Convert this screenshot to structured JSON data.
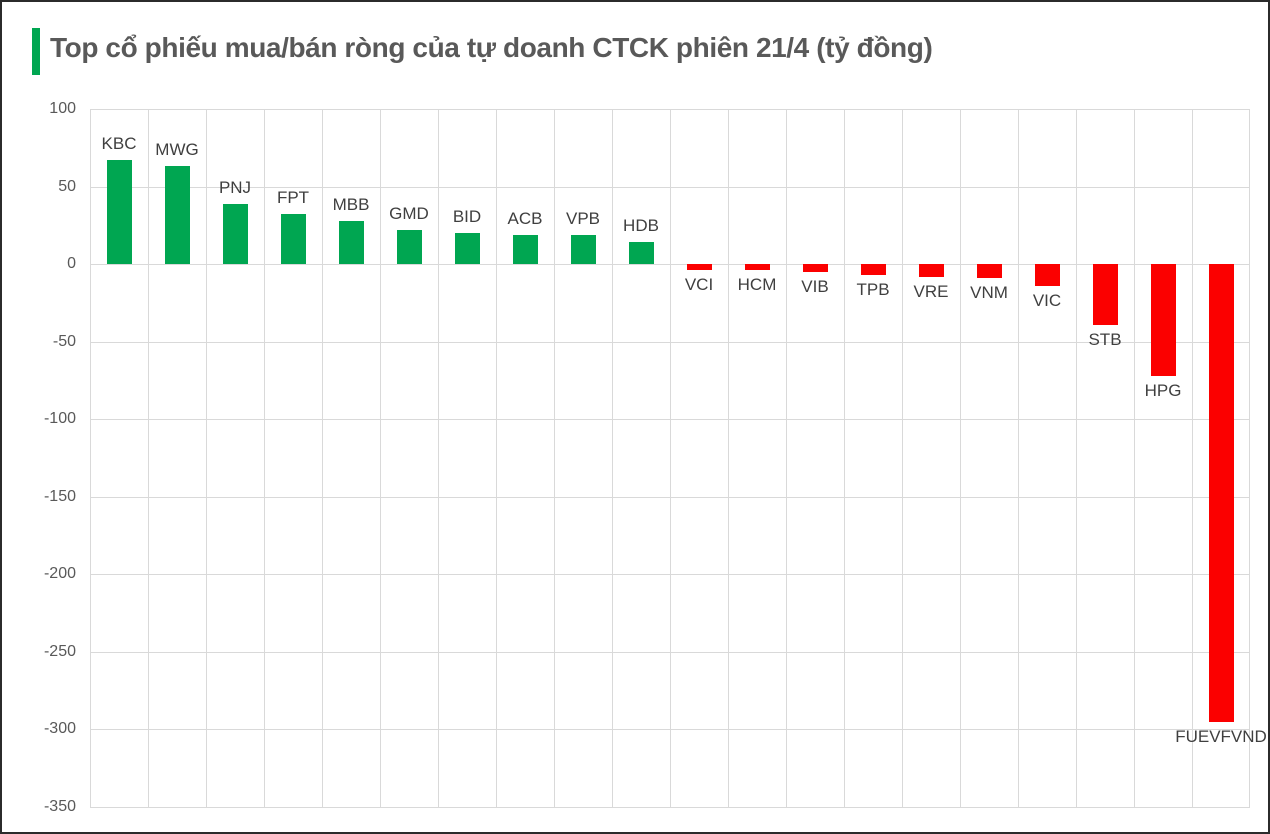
{
  "title": "Top cổ phiếu mua/bán ròng của tự doanh CTCK phiên 21/4 (tỷ đồng)",
  "accent_color": "#00A651",
  "chart_data": {
    "type": "bar",
    "title": "Top cổ phiếu mua/bán ròng của tự doanh CTCK phiên 21/4 (tỷ đồng)",
    "categories": [
      "KBC",
      "MWG",
      "PNJ",
      "FPT",
      "MBB",
      "GMD",
      "BID",
      "ACB",
      "VPB",
      "HDB",
      "VCI",
      "HCM",
      "VIB",
      "TPB",
      "VRE",
      "VNM",
      "VIC",
      "STB",
      "HPG",
      "FUEVFVND"
    ],
    "values": [
      67,
      63,
      39,
      32,
      28,
      22,
      20,
      19,
      19,
      14,
      -4,
      -4,
      -5,
      -7,
      -8,
      -9,
      -14,
      -39,
      -72,
      -295
    ],
    "xlabel": "",
    "ylabel": "",
    "ylim": [
      -350,
      100
    ],
    "yticks": [
      100,
      50,
      0,
      -50,
      -100,
      -150,
      -200,
      -250,
      -300,
      -350
    ],
    "grid": true,
    "legend_position": "none",
    "positive_color": "#00A651",
    "negative_color": "#FB0000",
    "gridline_color": "#D9D9D9",
    "axis_tick_color": "#595959",
    "data_label_color": "#3F3F3F",
    "title_color": "#595959"
  }
}
